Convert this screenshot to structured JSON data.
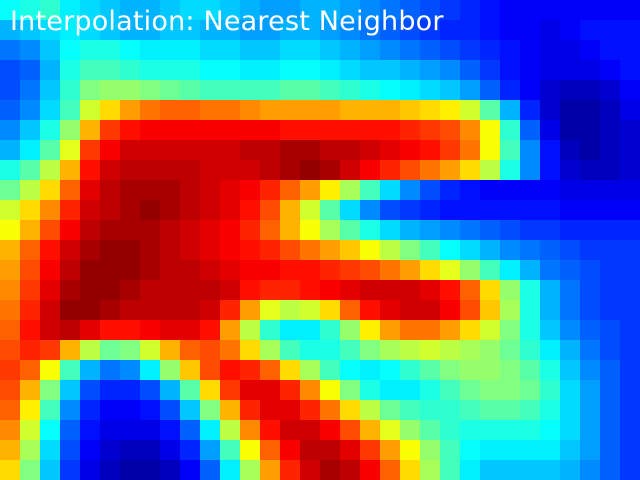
{
  "caption": "Interpolation: Nearest Neighbor",
  "colormap": "jet",
  "grid": [
    [
      0.38,
      0.4,
      0.42,
      0.36,
      0.34,
      0.32,
      0.3,
      0.3,
      0.32,
      0.34,
      0.34,
      0.32,
      0.3,
      0.28,
      0.28,
      0.3,
      0.3,
      0.28,
      0.26,
      0.24,
      0.22,
      0.2,
      0.18,
      0.16,
      0.14,
      0.12,
      0.12,
      0.12,
      0.12,
      0.12,
      0.12,
      0.12
    ],
    [
      0.3,
      0.32,
      0.34,
      0.36,
      0.34,
      0.32,
      0.3,
      0.3,
      0.32,
      0.32,
      0.3,
      0.3,
      0.28,
      0.28,
      0.3,
      0.3,
      0.28,
      0.26,
      0.24,
      0.22,
      0.2,
      0.18,
      0.16,
      0.16,
      0.14,
      0.12,
      0.12,
      0.1,
      0.12,
      0.14,
      0.14,
      0.14
    ],
    [
      0.24,
      0.26,
      0.32,
      0.38,
      0.4,
      0.4,
      0.38,
      0.36,
      0.36,
      0.36,
      0.34,
      0.34,
      0.32,
      0.32,
      0.34,
      0.34,
      0.32,
      0.3,
      0.28,
      0.26,
      0.24,
      0.22,
      0.2,
      0.18,
      0.16,
      0.14,
      0.12,
      0.1,
      0.1,
      0.12,
      0.14,
      0.14
    ],
    [
      0.2,
      0.22,
      0.3,
      0.4,
      0.44,
      0.44,
      0.42,
      0.4,
      0.4,
      0.4,
      0.38,
      0.38,
      0.36,
      0.36,
      0.38,
      0.38,
      0.36,
      0.34,
      0.32,
      0.32,
      0.3,
      0.28,
      0.26,
      0.22,
      0.18,
      0.14,
      0.12,
      0.1,
      0.1,
      0.1,
      0.12,
      0.14
    ],
    [
      0.2,
      0.24,
      0.32,
      0.42,
      0.5,
      0.52,
      0.52,
      0.5,
      0.48,
      0.46,
      0.44,
      0.44,
      0.44,
      0.44,
      0.46,
      0.46,
      0.44,
      0.42,
      0.4,
      0.38,
      0.36,
      0.34,
      0.32,
      0.28,
      0.22,
      0.16,
      0.12,
      0.08,
      0.06,
      0.06,
      0.08,
      0.12
    ],
    [
      0.22,
      0.26,
      0.34,
      0.44,
      0.58,
      0.66,
      0.72,
      0.76,
      0.78,
      0.78,
      0.76,
      0.76,
      0.74,
      0.72,
      0.72,
      0.72,
      0.72,
      0.7,
      0.7,
      0.7,
      0.68,
      0.66,
      0.64,
      0.58,
      0.46,
      0.3,
      0.16,
      0.08,
      0.04,
      0.04,
      0.06,
      0.1
    ],
    [
      0.26,
      0.32,
      0.4,
      0.52,
      0.7,
      0.82,
      0.86,
      0.88,
      0.88,
      0.88,
      0.88,
      0.88,
      0.88,
      0.88,
      0.86,
      0.86,
      0.86,
      0.86,
      0.86,
      0.86,
      0.84,
      0.82,
      0.8,
      0.74,
      0.62,
      0.42,
      0.22,
      0.1,
      0.04,
      0.04,
      0.06,
      0.08
    ],
    [
      0.3,
      0.36,
      0.46,
      0.6,
      0.82,
      0.88,
      0.92,
      0.92,
      0.92,
      0.92,
      0.92,
      0.92,
      0.94,
      0.94,
      0.96,
      0.96,
      0.94,
      0.94,
      0.92,
      0.9,
      0.88,
      0.86,
      0.82,
      0.76,
      0.62,
      0.44,
      0.26,
      0.14,
      0.06,
      0.04,
      0.06,
      0.08
    ],
    [
      0.4,
      0.46,
      0.56,
      0.7,
      0.86,
      0.92,
      0.94,
      0.94,
      0.94,
      0.94,
      0.92,
      0.92,
      0.92,
      0.94,
      0.96,
      0.98,
      0.96,
      0.92,
      0.88,
      0.84,
      0.8,
      0.76,
      0.72,
      0.66,
      0.56,
      0.4,
      0.26,
      0.14,
      0.08,
      0.06,
      0.06,
      0.08
    ],
    [
      0.48,
      0.56,
      0.66,
      0.78,
      0.9,
      0.94,
      0.96,
      0.96,
      0.96,
      0.94,
      0.92,
      0.9,
      0.88,
      0.84,
      0.78,
      0.72,
      0.64,
      0.54,
      0.44,
      0.34,
      0.26,
      0.2,
      0.16,
      0.14,
      0.12,
      0.12,
      0.12,
      0.12,
      0.1,
      0.1,
      0.1,
      0.1
    ],
    [
      0.58,
      0.66,
      0.74,
      0.84,
      0.92,
      0.94,
      0.96,
      0.98,
      0.96,
      0.94,
      0.92,
      0.9,
      0.86,
      0.8,
      0.7,
      0.58,
      0.46,
      0.34,
      0.26,
      0.2,
      0.18,
      0.16,
      0.14,
      0.14,
      0.14,
      0.14,
      0.14,
      0.14,
      0.12,
      0.12,
      0.12,
      0.12
    ],
    [
      0.62,
      0.7,
      0.8,
      0.88,
      0.94,
      0.96,
      0.96,
      0.96,
      0.94,
      0.92,
      0.9,
      0.88,
      0.84,
      0.78,
      0.7,
      0.62,
      0.54,
      0.46,
      0.4,
      0.34,
      0.3,
      0.28,
      0.26,
      0.24,
      0.22,
      0.2,
      0.18,
      0.18,
      0.16,
      0.16,
      0.16,
      0.16
    ],
    [
      0.7,
      0.78,
      0.86,
      0.92,
      0.96,
      0.98,
      0.98,
      0.96,
      0.94,
      0.92,
      0.9,
      0.88,
      0.86,
      0.84,
      0.8,
      0.76,
      0.72,
      0.68,
      0.62,
      0.56,
      0.5,
      0.44,
      0.38,
      0.34,
      0.3,
      0.26,
      0.24,
      0.22,
      0.2,
      0.18,
      0.18,
      0.18
    ],
    [
      0.72,
      0.8,
      0.88,
      0.94,
      0.98,
      0.98,
      0.98,
      0.96,
      0.94,
      0.94,
      0.92,
      0.9,
      0.88,
      0.88,
      0.86,
      0.86,
      0.84,
      0.82,
      0.8,
      0.76,
      0.72,
      0.66,
      0.6,
      0.52,
      0.44,
      0.36,
      0.3,
      0.24,
      0.22,
      0.2,
      0.18,
      0.18
    ],
    [
      0.74,
      0.82,
      0.9,
      0.96,
      0.98,
      0.98,
      0.96,
      0.94,
      0.94,
      0.94,
      0.94,
      0.92,
      0.86,
      0.84,
      0.84,
      0.86,
      0.88,
      0.9,
      0.92,
      0.92,
      0.92,
      0.9,
      0.86,
      0.78,
      0.66,
      0.52,
      0.4,
      0.3,
      0.24,
      0.2,
      0.18,
      0.18
    ],
    [
      0.76,
      0.84,
      0.92,
      0.98,
      0.98,
      0.96,
      0.94,
      0.94,
      0.94,
      0.94,
      0.92,
      0.84,
      0.72,
      0.6,
      0.56,
      0.58,
      0.66,
      0.78,
      0.86,
      0.9,
      0.92,
      0.92,
      0.88,
      0.8,
      0.68,
      0.54,
      0.4,
      0.3,
      0.24,
      0.2,
      0.18,
      0.18
    ],
    [
      0.78,
      0.86,
      0.92,
      0.94,
      0.9,
      0.86,
      0.86,
      0.88,
      0.9,
      0.9,
      0.86,
      0.72,
      0.56,
      0.42,
      0.36,
      0.36,
      0.42,
      0.52,
      0.64,
      0.72,
      0.76,
      0.76,
      0.72,
      0.66,
      0.58,
      0.5,
      0.4,
      0.32,
      0.26,
      0.22,
      0.2,
      0.18
    ],
    [
      0.8,
      0.84,
      0.82,
      0.7,
      0.56,
      0.48,
      0.5,
      0.58,
      0.7,
      0.78,
      0.8,
      0.76,
      0.66,
      0.54,
      0.44,
      0.4,
      0.4,
      0.44,
      0.5,
      0.54,
      0.56,
      0.58,
      0.56,
      0.54,
      0.52,
      0.48,
      0.42,
      0.36,
      0.3,
      0.24,
      0.2,
      0.18
    ],
    [
      0.82,
      0.78,
      0.62,
      0.44,
      0.3,
      0.24,
      0.26,
      0.36,
      0.52,
      0.68,
      0.8,
      0.86,
      0.84,
      0.78,
      0.66,
      0.54,
      0.44,
      0.38,
      0.36,
      0.38,
      0.42,
      0.46,
      0.5,
      0.52,
      0.52,
      0.5,
      0.46,
      0.4,
      0.32,
      0.26,
      0.22,
      0.18
    ],
    [
      0.8,
      0.7,
      0.5,
      0.32,
      0.2,
      0.16,
      0.16,
      0.2,
      0.3,
      0.46,
      0.66,
      0.82,
      0.9,
      0.9,
      0.84,
      0.74,
      0.62,
      0.5,
      0.4,
      0.36,
      0.36,
      0.4,
      0.44,
      0.48,
      0.5,
      0.5,
      0.48,
      0.42,
      0.34,
      0.28,
      0.22,
      0.18
    ],
    [
      0.78,
      0.64,
      0.44,
      0.26,
      0.16,
      0.12,
      0.12,
      0.14,
      0.2,
      0.32,
      0.5,
      0.7,
      0.84,
      0.9,
      0.9,
      0.84,
      0.76,
      0.66,
      0.56,
      0.48,
      0.44,
      0.42,
      0.42,
      0.44,
      0.46,
      0.46,
      0.44,
      0.4,
      0.34,
      0.28,
      0.22,
      0.18
    ],
    [
      0.74,
      0.58,
      0.38,
      0.22,
      0.14,
      0.1,
      0.1,
      0.1,
      0.14,
      0.22,
      0.36,
      0.56,
      0.74,
      0.86,
      0.92,
      0.92,
      0.88,
      0.8,
      0.7,
      0.6,
      0.52,
      0.46,
      0.42,
      0.4,
      0.4,
      0.4,
      0.4,
      0.38,
      0.34,
      0.28,
      0.22,
      0.18
    ],
    [
      0.7,
      0.54,
      0.34,
      0.2,
      0.12,
      0.08,
      0.06,
      0.06,
      0.1,
      0.16,
      0.28,
      0.44,
      0.62,
      0.78,
      0.88,
      0.94,
      0.94,
      0.9,
      0.82,
      0.72,
      0.62,
      0.52,
      0.44,
      0.38,
      0.36,
      0.36,
      0.36,
      0.36,
      0.32,
      0.28,
      0.22,
      0.18
    ],
    [
      0.66,
      0.5,
      0.32,
      0.18,
      0.1,
      0.06,
      0.04,
      0.04,
      0.06,
      0.12,
      0.22,
      0.36,
      0.54,
      0.72,
      0.84,
      0.92,
      0.96,
      0.94,
      0.88,
      0.78,
      0.66,
      0.54,
      0.44,
      0.36,
      0.32,
      0.32,
      0.32,
      0.32,
      0.3,
      0.26,
      0.22,
      0.18
    ]
  ]
}
